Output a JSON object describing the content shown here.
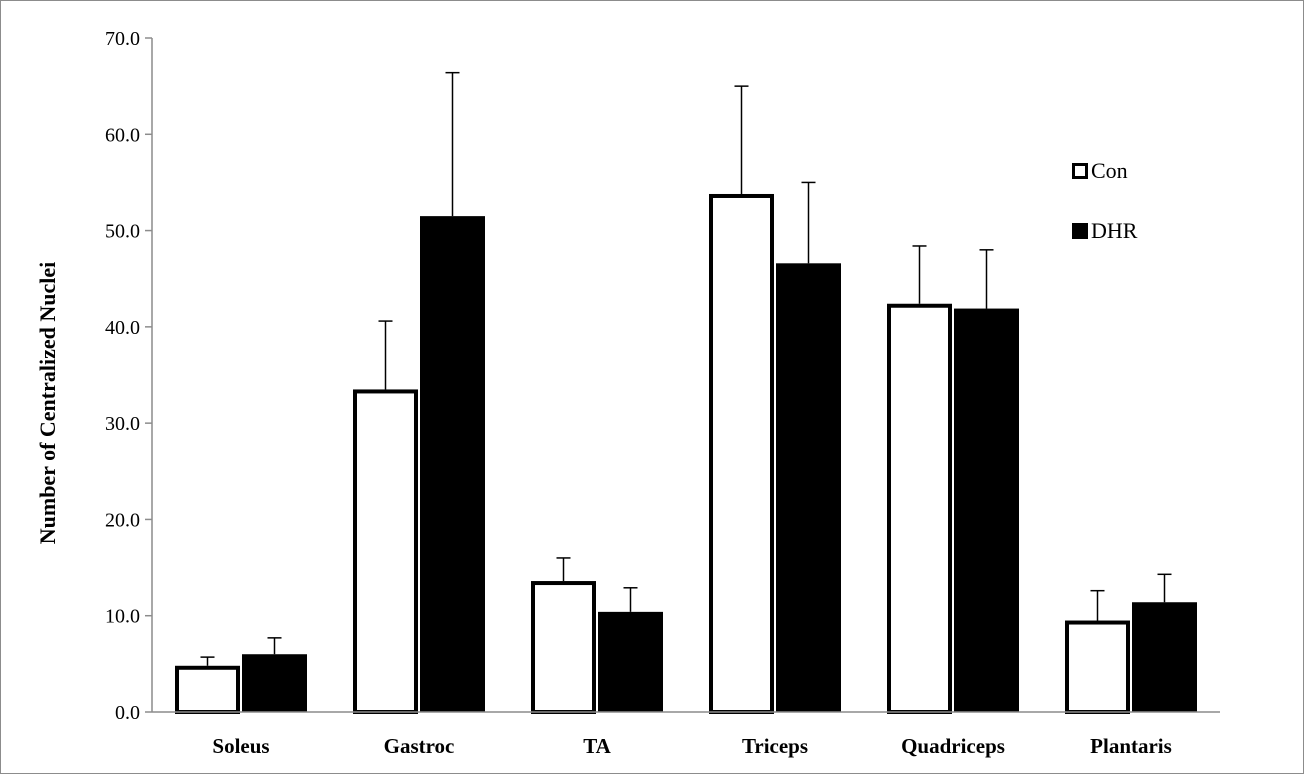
{
  "chart_data": {
    "type": "bar",
    "title": "",
    "xlabel": "",
    "ylabel": "Number of Centralized Nuclei",
    "ylim": [
      0,
      70
    ],
    "yticks": [
      0,
      10,
      20,
      30,
      40,
      50,
      60,
      70
    ],
    "ytick_labels": [
      "0.0",
      "10.0",
      "20.0",
      "30.0",
      "40.0",
      "50.0",
      "60.0",
      "70.0"
    ],
    "categories": [
      "Soleus",
      "Gastroc",
      "TA",
      "Triceps",
      "Quadriceps",
      "Plantaris"
    ],
    "series": [
      {
        "name": "Con",
        "values": [
          4.8,
          33.5,
          13.6,
          53.8,
          42.4,
          9.5
        ],
        "errors": [
          0.9,
          7.1,
          2.4,
          11.2,
          6.0,
          3.1
        ],
        "fill": "#ffffff",
        "stroke": "#000000"
      },
      {
        "name": "DHR",
        "values": [
          6.0,
          51.5,
          10.4,
          46.6,
          41.9,
          11.4
        ],
        "errors": [
          1.7,
          14.9,
          2.5,
          8.4,
          6.1,
          2.9
        ],
        "fill": "#000000",
        "stroke": "#000000"
      }
    ],
    "legend": "right",
    "grid": false,
    "error_bars": "upper"
  }
}
